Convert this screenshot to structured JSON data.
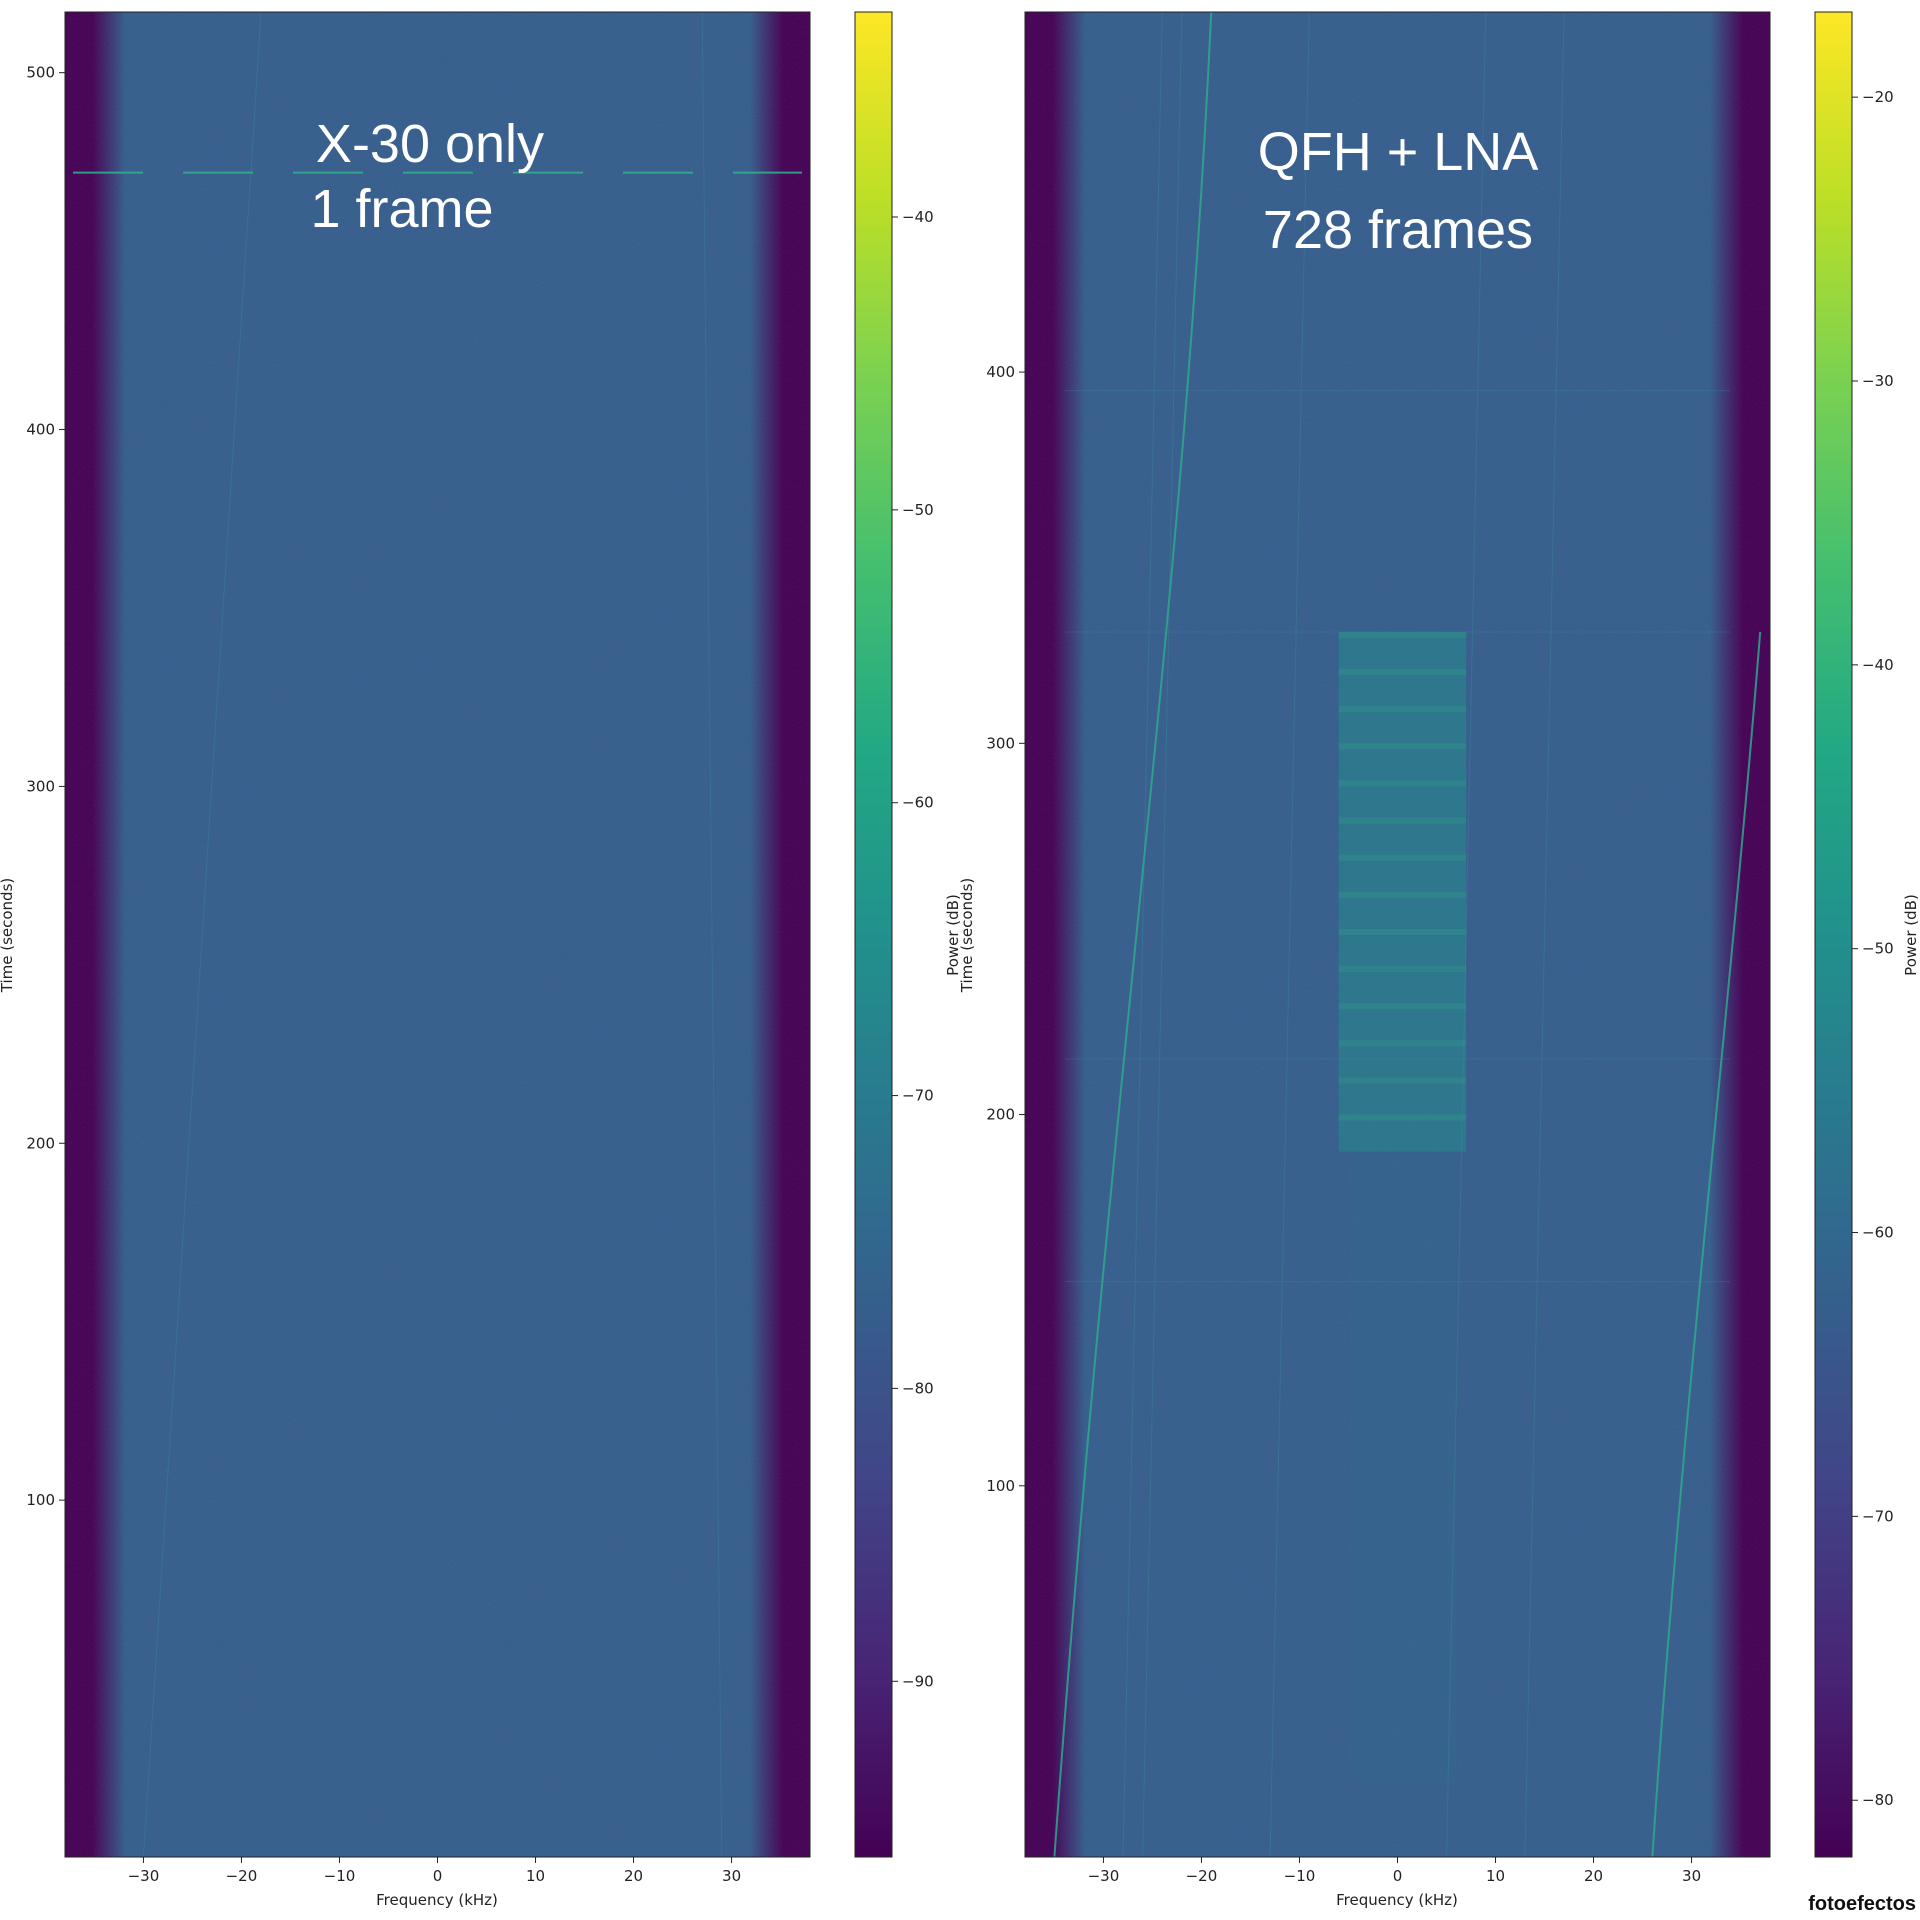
{
  "chart_data": [
    {
      "type": "heatmap",
      "title": "",
      "overlay_text": [
        "X-30 only",
        "1 frame"
      ],
      "xlabel": "Frequency (kHz)",
      "ylabel": "Time (seconds)",
      "xlim": [
        -38,
        38
      ],
      "ylim": [
        0,
        517
      ],
      "xticks": [
        -30,
        -20,
        -10,
        0,
        10,
        20,
        30
      ],
      "yticks": [
        100,
        200,
        300,
        400,
        500
      ],
      "colorbar": {
        "label": "Power (dB)",
        "range": [
          -96,
          -33
        ],
        "ticks": [
          -90,
          -80,
          -70,
          -60,
          -50,
          -40
        ]
      },
      "colormap": "viridis",
      "features": {
        "background_power_db": -77,
        "edge_rolloff_khz": 34,
        "frames_decoded": 1,
        "horizontal_streak_time_s": 472
      }
    },
    {
      "type": "heatmap",
      "title": "",
      "overlay_text": [
        "QFH + LNA",
        "728 frames"
      ],
      "xlabel": "Frequency (kHz)",
      "ylabel": "Time (seconds)",
      "xlim": [
        -38,
        38
      ],
      "ylim": [
        0,
        497
      ],
      "xticks": [
        -30,
        -20,
        -10,
        0,
        10,
        20,
        30
      ],
      "yticks": [
        100,
        200,
        300,
        400
      ],
      "colorbar": {
        "label": "Power (dB)",
        "range": [
          -82,
          -17
        ],
        "ticks": [
          -80,
          -70,
          -60,
          -50,
          -40,
          -30,
          -20
        ]
      },
      "colormap": "viridis",
      "features": {
        "background_power_db": -62,
        "signal_band_khz": [
          -6,
          7
        ],
        "signal_time_s": [
          190,
          330
        ],
        "signal_power_db": -55,
        "frames_decoded": 728
      }
    }
  ],
  "watermark": "fotoefectos"
}
